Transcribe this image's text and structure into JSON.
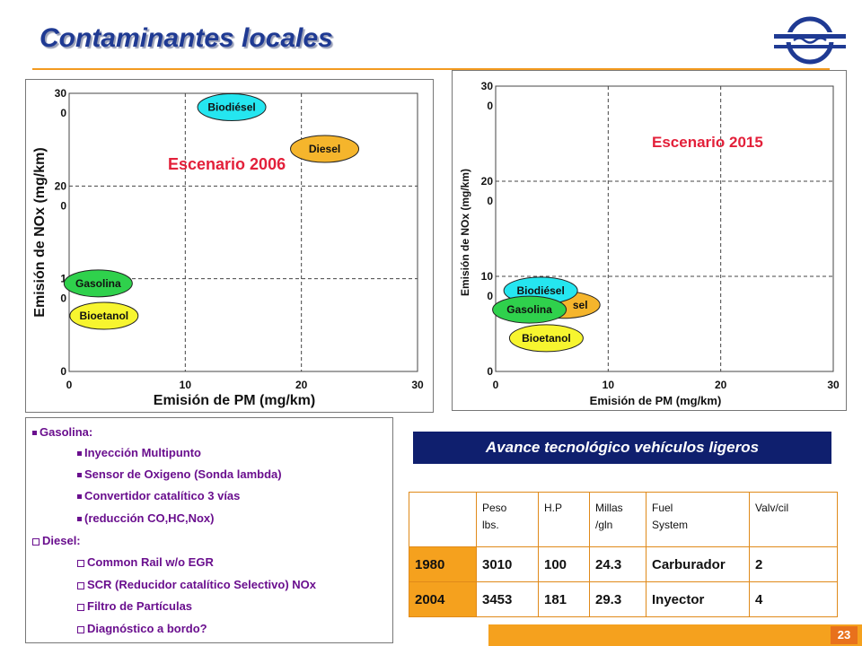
{
  "slide": {
    "title": "Contaminantes locales",
    "page_number": "23"
  },
  "colors": {
    "title_blue": "#1f3a93",
    "accent_orange": "#f5a11e",
    "banner_navy": "#0f1f6e",
    "notes_purple": "#6a0f8e",
    "scenario_red": "#e3203a",
    "biodiesel": "#25e6f0",
    "diesel": "#f5b52c",
    "gasolina": "#2fd14c",
    "bioetanol": "#f7f52f"
  },
  "chart_data": [
    {
      "type": "scatter",
      "title": "Escenario 2006",
      "xlabel": "Emisión de PM (mg/km)",
      "ylabel": "Emisión de NOx (mg/km)",
      "xlim": [
        0,
        30
      ],
      "ylim": [
        0,
        300
      ],
      "x_ticks": [
        "0",
        "10",
        "20",
        "30"
      ],
      "y_ticks": [
        {
          "top": "0",
          "bottom": ""
        },
        {
          "top": "1",
          "bottom": "0"
        },
        {
          "top": "20",
          "bottom": "0"
        },
        {
          "top": "30",
          "bottom": "0"
        }
      ],
      "grid": true,
      "points": [
        {
          "label": "Biodiésel",
          "x": 14,
          "y": 285,
          "color": "#25e6f0"
        },
        {
          "label": "Diesel",
          "x": 22,
          "y": 240,
          "color": "#f5b52c"
        },
        {
          "label": "Gasolina",
          "x": 2.5,
          "y": 95,
          "color": "#2fd14c"
        },
        {
          "label": "Bioetanol",
          "x": 3,
          "y": 60,
          "color": "#f7f52f"
        }
      ]
    },
    {
      "type": "scatter",
      "title": "Escenario 2015",
      "xlabel": "Emisión de PM (mg/km)",
      "ylabel": "Emisión de NOx (mg/km)",
      "xlim": [
        0,
        30
      ],
      "ylim": [
        0,
        300
      ],
      "x_ticks": [
        "0",
        "10",
        "20",
        "30"
      ],
      "y_ticks": [
        {
          "top": "0",
          "bottom": ""
        },
        {
          "top": "10",
          "bottom": "0"
        },
        {
          "top": "20",
          "bottom": "0"
        },
        {
          "top": "30",
          "bottom": "0"
        }
      ],
      "grid": true,
      "points": [
        {
          "label": "Diesel",
          "x": 6,
          "y": 70,
          "color": "#f5b52c",
          "partial_label": "sel"
        },
        {
          "label": "Biodiésel",
          "x": 4,
          "y": 85,
          "color": "#25e6f0"
        },
        {
          "label": "Gasolina",
          "x": 3,
          "y": 65,
          "color": "#2fd14c"
        },
        {
          "label": "Bioetanol",
          "x": 4.5,
          "y": 35,
          "color": "#f7f52f"
        }
      ]
    }
  ],
  "notes": {
    "items": [
      {
        "text": "Gasolina:",
        "level": 0,
        "bullet": "square"
      },
      {
        "text": "Inyección Multipunto",
        "level": 1,
        "bullet": "square"
      },
      {
        "text": "Sensor de Oxigeno (Sonda lambda)",
        "level": 1,
        "bullet": "square"
      },
      {
        "text": "Convertidor catalítico 3 vías",
        "level": 1,
        "bullet": "square"
      },
      {
        "text": "(reducción CO,HC,Nox)",
        "level": 1,
        "bullet": "square"
      },
      {
        "text": "Diesel:",
        "level": 0,
        "bullet": "box"
      },
      {
        "text": "Common Rail w/o EGR",
        "level": 1,
        "bullet": "box"
      },
      {
        "text": "SCR (Reducidor catalítico Selectivo) NOx",
        "level": 1,
        "bullet": "box"
      },
      {
        "text": "Filtro de Partículas",
        "level": 1,
        "bullet": "box"
      },
      {
        "text": "Diagnóstico a bordo?",
        "level": 1,
        "bullet": "box"
      }
    ]
  },
  "banner": {
    "text": "Avance tecnológico vehículos ligeros"
  },
  "table": {
    "headers": [
      {
        "line1": "",
        "line2": ""
      },
      {
        "line1": "Peso",
        "line2": "lbs."
      },
      {
        "line1": "H.P",
        "line2": ""
      },
      {
        "line1": "Millas",
        "line2": "/gln"
      },
      {
        "line1": "Fuel",
        "line2": "System"
      },
      {
        "line1": "Valv/cil",
        "line2": ""
      }
    ],
    "rows": [
      [
        "1980",
        "3010",
        "100",
        "24.3",
        "Carburador",
        "2"
      ],
      [
        "2004",
        "3453",
        "181",
        "29.3",
        "Inyector",
        "4"
      ]
    ]
  }
}
